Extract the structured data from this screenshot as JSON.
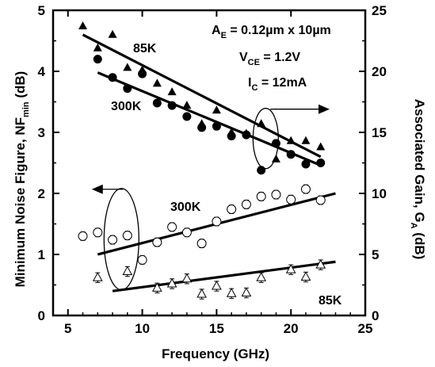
{
  "chart_data": {
    "type": "scatter",
    "xlabel": "Frequency (GHz)",
    "ylabel_left": {
      "main": "Minimum Noise Figure, NF",
      "sub": "min",
      "unit": " (dB)"
    },
    "ylabel_right": {
      "main": "Associated Gain, G",
      "sub": "A",
      "unit": " (dB)"
    },
    "xlim": [
      4,
      25
    ],
    "ylim_left": [
      0,
      5
    ],
    "ylim_right": [
      0,
      25
    ],
    "x_ticks": [
      5,
      10,
      15,
      20,
      25
    ],
    "y_ticks_left": [
      0,
      1,
      2,
      3,
      4,
      5
    ],
    "y_ticks_right": [
      0,
      5,
      10,
      15,
      20,
      25
    ],
    "grid": false,
    "annotations": {
      "device": {
        "prefix": "A",
        "sub": "E",
        "rest": " = 0.12µm x 10µm"
      },
      "vce": {
        "prefix": "V",
        "sub": "CE",
        "rest": " = 1.2V"
      },
      "ic": {
        "prefix": "I",
        "sub": "C",
        "rest": " = 12mA"
      },
      "label_85k_gain": "85K",
      "label_300k_gain": "300K",
      "label_300k_nf": "300K",
      "label_85k_nf": "85K"
    },
    "series": [
      {
        "name": "85K",
        "axis": "right",
        "marker": "filled-triangle",
        "x": [
          6,
          7,
          8,
          9,
          10,
          11,
          12,
          13,
          14,
          15,
          16,
          17,
          18,
          19,
          20,
          21,
          22
        ],
        "y": [
          23.7,
          21.9,
          23.0,
          20.3,
          20.1,
          19.0,
          18.3,
          17.2,
          15.7,
          16.8,
          15.0,
          14.9,
          15.7,
          12.8,
          14.3,
          14.3,
          13.8
        ],
        "fit": {
          "x": [
            6,
            22
          ],
          "y": [
            23.0,
            13.0
          ]
        }
      },
      {
        "name": "300K",
        "axis": "right",
        "marker": "filled-circle",
        "x": [
          7,
          8,
          9,
          10,
          11,
          12,
          13,
          14,
          15,
          16,
          17,
          18,
          19,
          20,
          21,
          22
        ],
        "y": [
          21.0,
          19.5,
          18.6,
          19.8,
          17.4,
          17.2,
          16.3,
          15.4,
          15.5,
          14.7,
          14.8,
          11.9,
          14.1,
          13.2,
          12.4,
          12.5
        ],
        "fit": {
          "x": [
            7,
            22
          ],
          "y": [
            19.9,
            12.3
          ]
        }
      },
      {
        "name": "300K",
        "axis": "left",
        "marker": "open-circle",
        "x": [
          6,
          7,
          8,
          9,
          10,
          11,
          12,
          13,
          14,
          15,
          16,
          17,
          18,
          19,
          20,
          21,
          22
        ],
        "y": [
          1.3,
          1.36,
          1.24,
          1.31,
          0.91,
          1.2,
          1.45,
          1.36,
          1.18,
          1.54,
          1.74,
          1.82,
          1.95,
          1.98,
          1.9,
          2.07,
          1.89
        ],
        "err": 0.07,
        "fit": {
          "x": [
            7,
            23
          ],
          "y": [
            1.0,
            2.0
          ]
        }
      },
      {
        "name": "85K",
        "axis": "left",
        "marker": "open-triangle",
        "x": [
          7,
          9,
          11,
          12,
          13,
          14,
          15,
          16,
          17,
          18,
          20,
          21,
          22
        ],
        "y": [
          0.62,
          0.72,
          0.45,
          0.52,
          0.6,
          0.35,
          0.48,
          0.36,
          0.37,
          0.62,
          0.75,
          0.63,
          0.83
        ],
        "err": 0.08,
        "fit": {
          "x": [
            8,
            23
          ],
          "y": [
            0.4,
            0.88
          ]
        }
      }
    ]
  }
}
